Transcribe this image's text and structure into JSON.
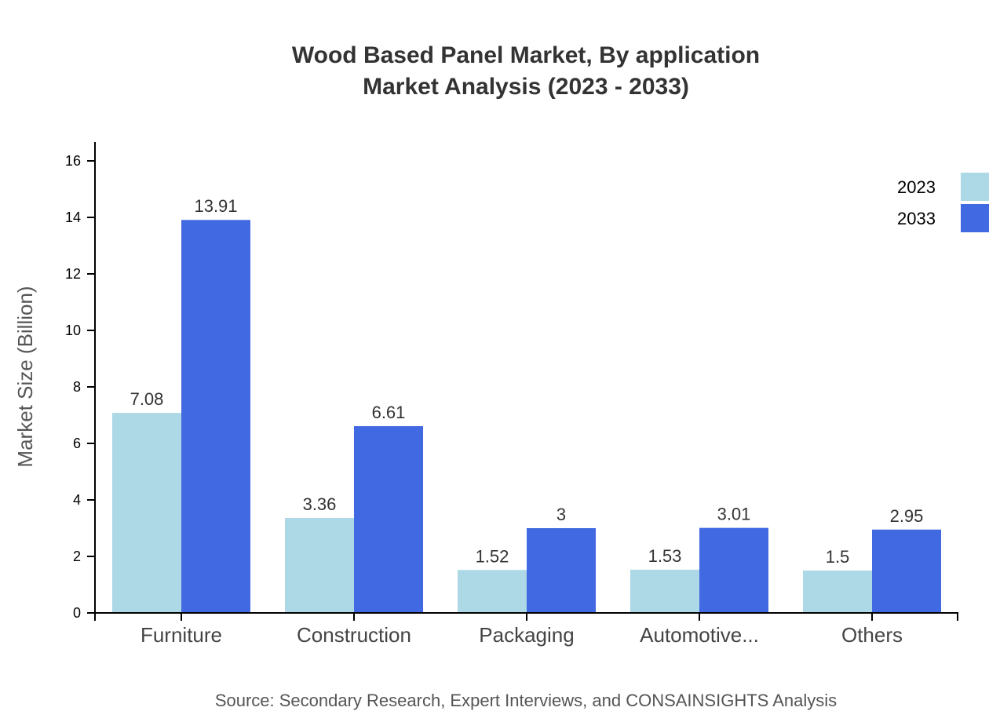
{
  "chart_data": {
    "type": "bar",
    "title": "Wood Based Panel Market, By application",
    "subtitle": "Market Analysis (2023 - 2033)",
    "xlabel": "",
    "ylabel": "Market Size (Billion)",
    "categories": [
      "Furniture",
      "Construction",
      "Packaging",
      "Automotive...",
      "Others"
    ],
    "series": [
      {
        "name": "2023",
        "color": "#add8e6",
        "values": [
          7.08,
          3.36,
          1.52,
          1.53,
          1.5
        ],
        "labels": [
          "7.08",
          "3.36",
          "1.52",
          "1.53",
          "1.5"
        ]
      },
      {
        "name": "2033",
        "color": "#4169e1",
        "values": [
          13.91,
          6.61,
          3,
          3.01,
          2.95
        ],
        "labels": [
          "13.91",
          "6.61",
          "3",
          "3.01",
          "2.95"
        ]
      }
    ],
    "ylim": [
      0,
      16.7
    ],
    "yticks": [
      0,
      2,
      4,
      6,
      8,
      10,
      12,
      14,
      16
    ],
    "grid": false,
    "legend_position": "top-right"
  },
  "source": "Source: Secondary Research, Expert Interviews, and CONSAINSIGHTS Analysis"
}
